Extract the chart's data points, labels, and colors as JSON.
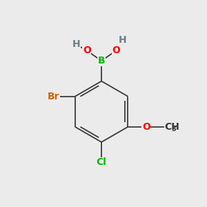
{
  "background_color": "#EBEBEB",
  "bond_color": "#3a3a3a",
  "bond_width": 1.3,
  "atom_colors": {
    "B": "#00BB00",
    "O": "#FF0000",
    "H": "#6a8080",
    "Br": "#CC6600",
    "Cl": "#00BB00",
    "C": "#3a3a3a",
    "OCH3_C": "#3a3a3a"
  },
  "font_size": 10,
  "fig_size": [
    3.0,
    3.0
  ],
  "dpi": 100
}
